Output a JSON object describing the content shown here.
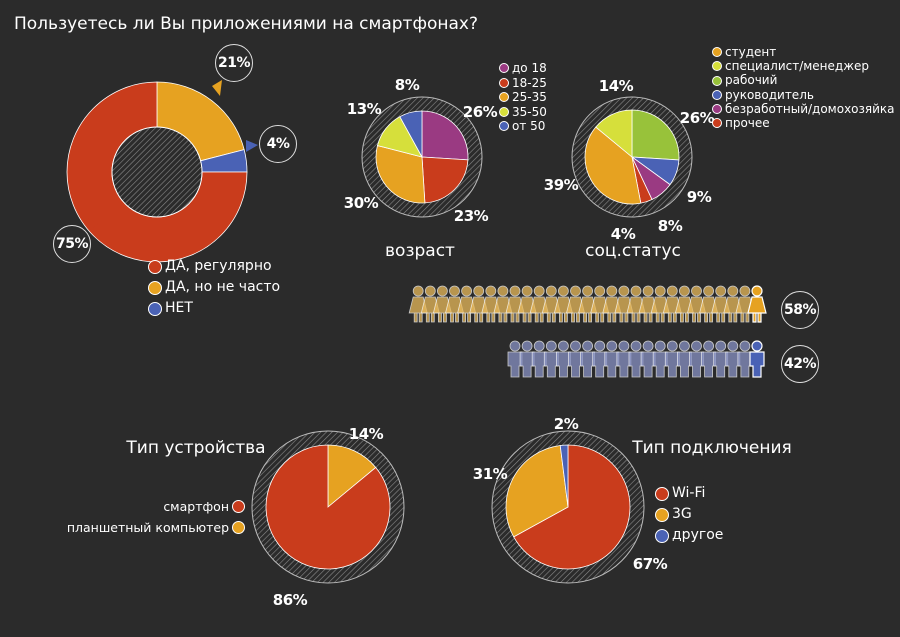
{
  "title": "Пользуетесь ли Вы приложениями на смартфонах?",
  "colors": {
    "red": "#c93c1c",
    "orange": "#e6a221",
    "yellow": "#d6df3b",
    "green": "#98c23a",
    "blue": "#4a62b5",
    "purple": "#9a3a82",
    "background": "#2b2b2b"
  },
  "chart_data": [
    {
      "type": "pie",
      "subtype": "donut",
      "title": "Пользуетесь ли Вы приложениями на смартфонах?",
      "categories": [
        "ДА, регулярно",
        "ДА, но не часто",
        "НЕТ"
      ],
      "values": [
        75,
        21,
        4
      ],
      "labels": [
        "75%",
        "21%",
        "4%"
      ],
      "legend_colors": [
        "#c93c1c",
        "#e6a221",
        "#4a62b5"
      ],
      "legend": "bottom"
    },
    {
      "type": "pie",
      "title": "возраст",
      "categories": [
        "до 18",
        "18-25",
        "25-35",
        "35-50",
        "от 50"
      ],
      "values": [
        26,
        23,
        30,
        13,
        8
      ],
      "labels": [
        "26%",
        "23%",
        "30%",
        "13%",
        "8%"
      ],
      "legend_colors": [
        "#9a3a82",
        "#c93c1c",
        "#e6a221",
        "#d6df3b",
        "#4a62b5"
      ],
      "legend": "right"
    },
    {
      "type": "pie",
      "title": "соц.статус",
      "categories": [
        "студент",
        "специалист/менеджер",
        "рабочий",
        "руководитель",
        "безработный/домохозяйка",
        "прочее"
      ],
      "values": [
        39,
        14,
        26,
        9,
        8,
        4
      ],
      "labels": [
        "39%",
        "14%",
        "26%",
        "9%",
        "8%",
        "4%"
      ],
      "legend_colors": [
        "#e6a221",
        "#d6df3b",
        "#98c23a",
        "#4a62b5",
        "#9a3a82",
        "#c93c1c"
      ],
      "legend": "right"
    },
    {
      "type": "bar",
      "subtype": "pictogram",
      "categories": [
        "женщины",
        "мужчины"
      ],
      "values": [
        58,
        42
      ],
      "labels": [
        "58%",
        "42%"
      ],
      "colors": [
        "#e6a221",
        "#4a62b5"
      ]
    },
    {
      "type": "pie",
      "title": "Тип устройства",
      "categories": [
        "смартфон",
        "планшетный компьютер"
      ],
      "values": [
        86,
        14
      ],
      "labels": [
        "86%",
        "14%"
      ],
      "legend_colors": [
        "#c93c1c",
        "#e6a221"
      ],
      "legend": "left"
    },
    {
      "type": "pie",
      "title": "Тип подключения",
      "categories": [
        "Wi-Fi",
        "3G",
        "другое"
      ],
      "values": [
        67,
        31,
        2
      ],
      "labels": [
        "67%",
        "31%",
        "2%"
      ],
      "legend_colors": [
        "#c93c1c",
        "#e6a221",
        "#4a62b5"
      ],
      "legend": "right"
    }
  ]
}
